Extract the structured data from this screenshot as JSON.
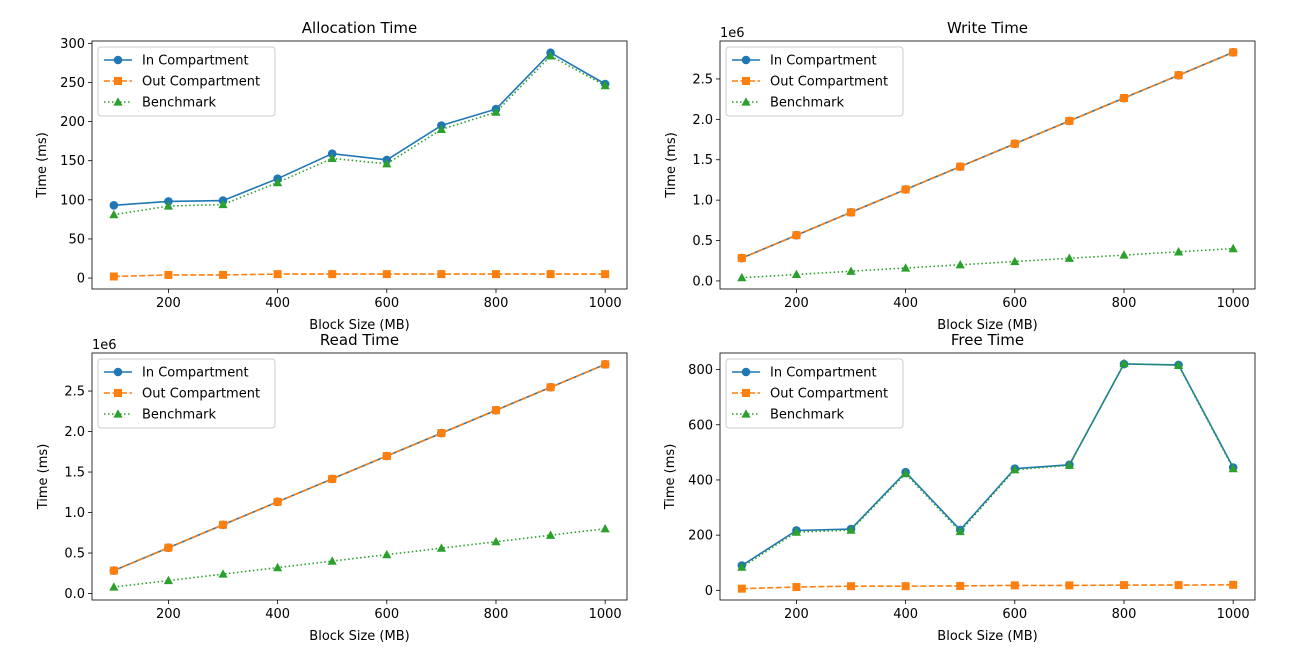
{
  "chart_data": [
    {
      "type": "line",
      "title": "Allocation Time",
      "xlabel": "Block Size (MB)",
      "ylabel": "Time (ms)",
      "offset_label": "",
      "x": [
        100,
        200,
        300,
        400,
        500,
        600,
        700,
        800,
        900,
        1000
      ],
      "xlim": [
        60,
        1040
      ],
      "ylim": [
        -14,
        303
      ],
      "xticks": [
        200,
        400,
        600,
        800,
        1000
      ],
      "xtick_labels": [
        "200",
        "400",
        "600",
        "800",
        "1000"
      ],
      "yticks": [
        0,
        50,
        100,
        150,
        200,
        250,
        300
      ],
      "ytick_labels": [
        "0",
        "50",
        "100",
        "150",
        "200",
        "250",
        "300"
      ],
      "legend_position": "top-left",
      "grid": false,
      "series": [
        {
          "name": "In Compartment",
          "values": [
            93,
            98,
            99,
            127,
            159,
            151,
            195,
            216,
            288,
            248
          ]
        },
        {
          "name": "Out Compartment",
          "values": [
            2,
            4,
            4,
            5,
            5,
            5,
            5,
            5,
            5,
            5
          ]
        },
        {
          "name": "Benchmark",
          "values": [
            81,
            92,
            94,
            122,
            153,
            146,
            190,
            212,
            284,
            246
          ]
        }
      ]
    },
    {
      "type": "line",
      "title": "Write Time",
      "xlabel": "Block Size (MB)",
      "ylabel": "Time (ms)",
      "offset_label": "1e6",
      "x": [
        100,
        200,
        300,
        400,
        500,
        600,
        700,
        800,
        900,
        1000
      ],
      "xlim": [
        60,
        1040
      ],
      "ylim": [
        -0.1,
        2.97
      ],
      "xticks": [
        200,
        400,
        600,
        800,
        1000
      ],
      "xtick_labels": [
        "200",
        "400",
        "600",
        "800",
        "1000"
      ],
      "yticks": [
        0,
        0.5,
        1,
        1.5,
        2,
        2.5
      ],
      "ytick_labels": [
        "0.0",
        "0.5",
        "1.0",
        "1.5",
        "2.0",
        "2.5"
      ],
      "legend_position": "top-left",
      "grid": false,
      "series": [
        {
          "name": "In Compartment",
          "values": [
            0.283,
            0.566,
            0.849,
            1.132,
            1.415,
            1.698,
            1.981,
            2.264,
            2.547,
            2.83
          ]
        },
        {
          "name": "Out Compartment",
          "values": [
            0.283,
            0.566,
            0.849,
            1.132,
            1.415,
            1.698,
            1.981,
            2.264,
            2.547,
            2.83
          ]
        },
        {
          "name": "Benchmark",
          "values": [
            0.04,
            0.08,
            0.12,
            0.16,
            0.2,
            0.24,
            0.28,
            0.32,
            0.36,
            0.4
          ]
        }
      ]
    },
    {
      "type": "line",
      "title": "Read Time",
      "xlabel": "Block Size (MB)",
      "ylabel": "Time (ms)",
      "offset_label": "1e6",
      "x": [
        100,
        200,
        300,
        400,
        500,
        600,
        700,
        800,
        900,
        1000
      ],
      "xlim": [
        60,
        1040
      ],
      "ylim": [
        -0.08,
        2.97
      ],
      "xticks": [
        200,
        400,
        600,
        800,
        1000
      ],
      "xtick_labels": [
        "200",
        "400",
        "600",
        "800",
        "1000"
      ],
      "yticks": [
        0,
        0.5,
        1,
        1.5,
        2,
        2.5
      ],
      "ytick_labels": [
        "0.0",
        "0.5",
        "1.0",
        "1.5",
        "2.0",
        "2.5"
      ],
      "legend_position": "top-left",
      "grid": false,
      "series": [
        {
          "name": "In Compartment",
          "values": [
            0.283,
            0.566,
            0.849,
            1.132,
            1.415,
            1.698,
            1.981,
            2.264,
            2.547,
            2.83
          ]
        },
        {
          "name": "Out Compartment",
          "values": [
            0.283,
            0.566,
            0.849,
            1.132,
            1.415,
            1.698,
            1.981,
            2.264,
            2.547,
            2.83
          ]
        },
        {
          "name": "Benchmark",
          "values": [
            0.08,
            0.16,
            0.24,
            0.32,
            0.4,
            0.48,
            0.56,
            0.64,
            0.72,
            0.8
          ]
        }
      ]
    },
    {
      "type": "line",
      "title": "Free Time",
      "xlabel": "Block Size (MB)",
      "ylabel": "Time (ms)",
      "offset_label": "",
      "x": [
        100,
        200,
        300,
        400,
        500,
        600,
        700,
        800,
        900,
        1000
      ],
      "xlim": [
        60,
        1040
      ],
      "ylim": [
        -35,
        860
      ],
      "xticks": [
        200,
        400,
        600,
        800,
        1000
      ],
      "xtick_labels": [
        "200",
        "400",
        "600",
        "800",
        "1000"
      ],
      "yticks": [
        0,
        200,
        400,
        600,
        800
      ],
      "ytick_labels": [
        "0",
        "200",
        "400",
        "600",
        "800"
      ],
      "legend_position": "top-left",
      "grid": false,
      "series": [
        {
          "name": "In Compartment",
          "values": [
            90,
            217,
            222,
            428,
            219,
            441,
            455,
            820,
            817,
            445
          ]
        },
        {
          "name": "Out Compartment",
          "values": [
            6,
            12,
            15,
            15,
            16,
            18,
            18,
            19,
            19,
            20
          ]
        },
        {
          "name": "Benchmark",
          "values": [
            84,
            211,
            218,
            423,
            213,
            437,
            453,
            822,
            815,
            441
          ]
        }
      ]
    }
  ],
  "styles": {
    "colors": [
      "#1f77b4",
      "#ff7f0e",
      "#2ca02c"
    ],
    "dashes": [
      "",
      "6 2.5",
      "1.5 2.5"
    ],
    "markers": [
      "circle",
      "square",
      "triangle"
    ]
  }
}
